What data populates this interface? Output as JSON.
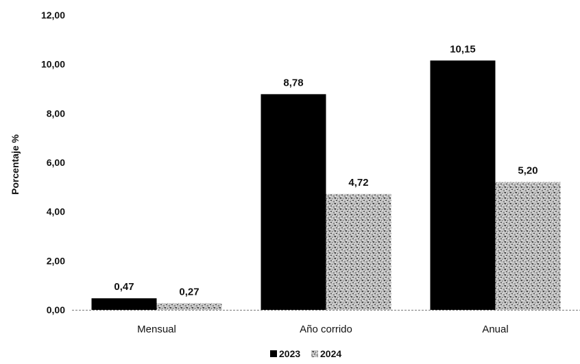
{
  "chart_data": {
    "type": "bar",
    "categories": [
      "Mensual",
      "Año corrido",
      "Anual"
    ],
    "series": [
      {
        "name": "2023",
        "values": [
          0.47,
          8.78,
          10.15
        ],
        "value_labels": [
          "0,47",
          "8,78",
          "10,15"
        ],
        "color": "#000000",
        "pattern": "solid"
      },
      {
        "name": "2024",
        "values": [
          0.27,
          4.72,
          5.2
        ],
        "value_labels": [
          "0,27",
          "4,72",
          "5,20"
        ],
        "color": "#b8b8b8",
        "pattern": "speckled"
      }
    ],
    "title": "",
    "xlabel": "",
    "ylabel": "Porcentaje %",
    "ylim": [
      0,
      12
    ],
    "yticks": [
      0,
      2,
      4,
      6,
      8,
      10,
      12
    ],
    "ytick_labels": [
      "0,00",
      "2,00",
      "4,00",
      "6,00",
      "8,00",
      "10,00",
      "12,00"
    ],
    "grid": false,
    "legend_position": "bottom"
  }
}
